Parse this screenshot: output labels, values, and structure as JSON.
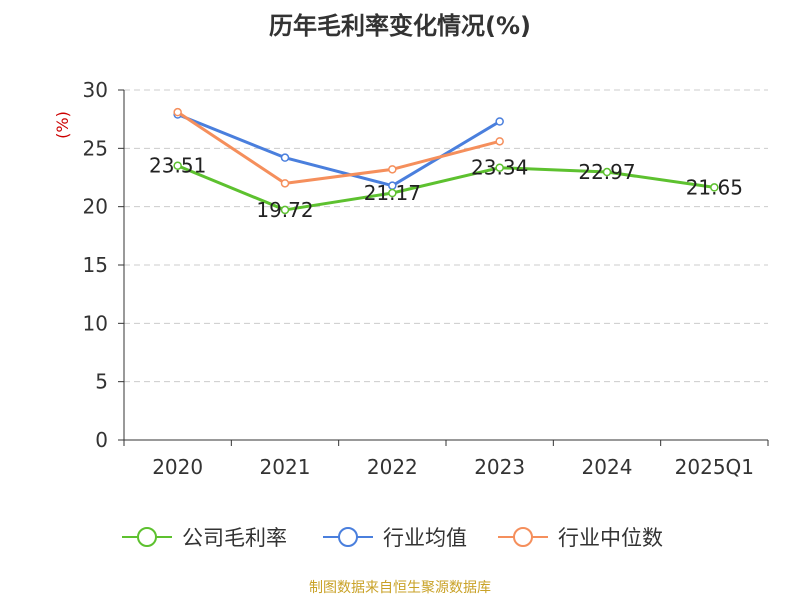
{
  "title": "历年毛利率变化情况(%)",
  "source": "制图数据来自恒生聚源数据库",
  "colors": {
    "company": "#5dc12f",
    "industry_avg": "#4a7fdd",
    "industry_median": "#f58f5c",
    "source_text": "#c9a227",
    "unit_text": "#cc0000",
    "axis": "#333333",
    "grid": "#cccccc"
  },
  "chart_data": {
    "type": "line",
    "title": "历年毛利率变化情况(%)",
    "ylabel": "(%)",
    "xlabel": "",
    "categories": [
      "2020",
      "2021",
      "2022",
      "2023",
      "2024",
      "2025Q1"
    ],
    "ylim": [
      0,
      30
    ],
    "yticks": [
      "0",
      "5",
      "10",
      "15",
      "20",
      "25",
      "30"
    ],
    "grid": "horizontal dashed",
    "legend": "bottom",
    "series": [
      {
        "name": "公司毛利率",
        "color": "#5dc12f",
        "values": [
          23.51,
          19.72,
          21.17,
          23.34,
          22.97,
          21.65
        ],
        "labels": [
          "23.51",
          "19.72",
          "21.17",
          "23.34",
          "22.97",
          "21.65"
        ]
      },
      {
        "name": "行业均值",
        "color": "#4a7fdd",
        "values": [
          27.9,
          24.2,
          21.8,
          27.3,
          null,
          null
        ]
      },
      {
        "name": "行业中位数",
        "color": "#f58f5c",
        "values": [
          28.1,
          22.0,
          23.2,
          25.6,
          null,
          null
        ]
      }
    ]
  }
}
